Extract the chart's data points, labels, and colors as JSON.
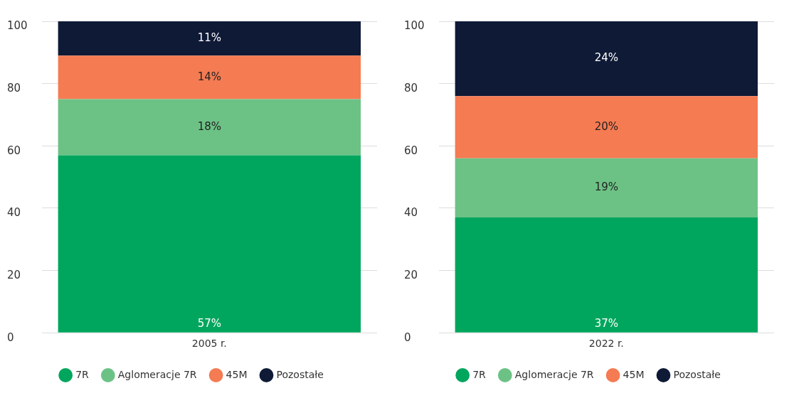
{
  "chart_data": [
    {
      "type": "bar",
      "stacked": true,
      "categories": [
        "2005 r."
      ],
      "ylim": [
        0,
        100
      ],
      "yticks": [
        0,
        20,
        40,
        60,
        80,
        100
      ],
      "grid": "y",
      "legend": "bottom",
      "series": [
        {
          "name": "7R",
          "color": "#00a65d",
          "values": [
            57
          ],
          "value_labels": [
            "57%"
          ]
        },
        {
          "name": "Aglomeracje 7R",
          "color": "#6cc285",
          "values": [
            18
          ],
          "value_labels": [
            "18%"
          ]
        },
        {
          "name": "45M",
          "color": "#f47b52",
          "values": [
            14
          ],
          "value_labels": [
            "14%"
          ]
        },
        {
          "name": "Pozostałe",
          "color": "#0e1a36",
          "values": [
            11
          ],
          "value_labels": [
            "11%"
          ]
        }
      ]
    },
    {
      "type": "bar",
      "stacked": true,
      "categories": [
        "2022 r."
      ],
      "ylim": [
        0,
        100
      ],
      "yticks": [
        0,
        20,
        40,
        60,
        80,
        100
      ],
      "grid": "y",
      "legend": "bottom",
      "series": [
        {
          "name": "7R",
          "color": "#00a65d",
          "values": [
            37
          ],
          "value_labels": [
            "37%"
          ]
        },
        {
          "name": "Aglomeracje 7R",
          "color": "#6cc285",
          "values": [
            19
          ],
          "value_labels": [
            "19%"
          ]
        },
        {
          "name": "45M",
          "color": "#f47b52",
          "values": [
            20
          ],
          "value_labels": [
            "20%"
          ]
        },
        {
          "name": "Pozostałe",
          "color": "#0e1a36",
          "values": [
            24
          ],
          "value_labels": [
            "24%"
          ]
        }
      ]
    }
  ]
}
